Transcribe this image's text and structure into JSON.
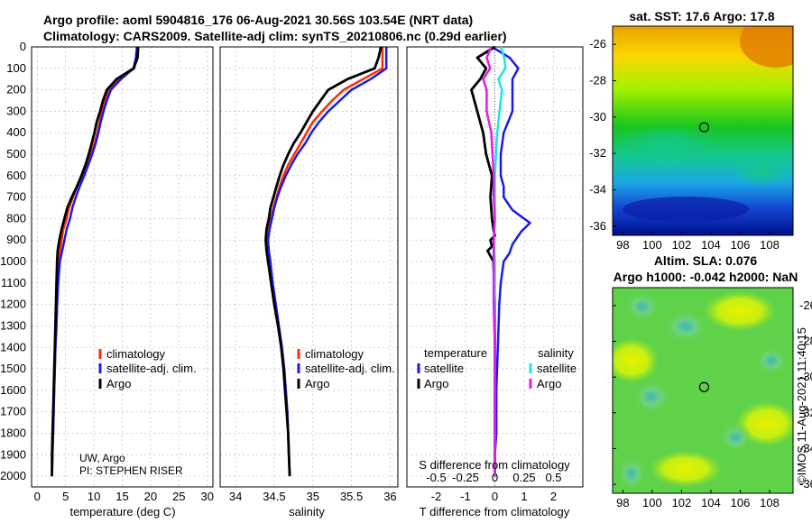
{
  "titles": {
    "line1": "Argo profile: aoml 5904816_176 06-Aug-2021 30.56S 103.54E (NRT data)",
    "line2": "Climatology: CARS2009. Satellite-adj clim: synTS_20210806.nc (0.29d earlier)"
  },
  "colors": {
    "climatology": "#ff2a00",
    "satellite": "#1a1ae6",
    "argo": "#000000",
    "t_satellite": "#1a1ae6",
    "s_satellite": "#19e6e6",
    "s_argo": "#e619e6"
  },
  "depth_axis": {
    "ticks": [
      "0",
      "100",
      "200",
      "300",
      "400",
      "500",
      "600",
      "700",
      "800",
      "900",
      "1000",
      "1100",
      "1200",
      "1300",
      "1400",
      "1500",
      "1600",
      "1700",
      "1800",
      "1900",
      "2000"
    ]
  },
  "temperature_panel": {
    "xlabel": "temperature (deg C)",
    "xticks": [
      "0",
      "5",
      "10",
      "15",
      "20",
      "25",
      "30"
    ],
    "legend": [
      "climatology",
      "satellite-adj. clim.",
      "Argo"
    ],
    "note_line1": "UW, Argo",
    "note_line2": "PI: STEPHEN RISER"
  },
  "salinity_panel": {
    "xlabel": "salinity",
    "xticks": [
      "34",
      "34.5",
      "35",
      "35.5",
      "36"
    ],
    "legend": [
      "climatology",
      "satellite-adj. clim.",
      "Argo"
    ]
  },
  "difference_panel": {
    "xlabel": "T difference from climatology",
    "top_label": "S difference from climatology",
    "xticks": [
      "-2",
      "-1",
      "0",
      "1",
      "2"
    ],
    "s_ticks": [
      "-0.5",
      "-0.25",
      "0",
      "0.25",
      "0.5"
    ],
    "legend_t_title": "temperature",
    "legend_s_title": "salinity",
    "legend_t": [
      "satellite",
      "Argo"
    ],
    "legend_s": [
      "satellite",
      "Argo"
    ]
  },
  "sst_map": {
    "title": "sat. SST: 17.6 Argo: 17.8",
    "yticks": [
      "-26",
      "-28",
      "-30",
      "-32",
      "-34",
      "-36"
    ],
    "xticks": [
      "98",
      "100",
      "102",
      "104",
      "106",
      "108"
    ],
    "marker": {
      "lon": 103.54,
      "lat": -30.56
    }
  },
  "sla_map": {
    "title_line1": "Altim. SLA: 0.076",
    "title_line2": "Argo h1000: -0.042 h2000: NaN",
    "yticks": [
      "-26",
      "-28",
      "-30",
      "-32",
      "-34",
      "-36"
    ],
    "xticks": [
      "98",
      "100",
      "102",
      "104",
      "106",
      "108"
    ],
    "marker": {
      "lon": 103.54,
      "lat": -30.56
    }
  },
  "watermark": "©IMOS 11-Aug-2021 11:40:15",
  "chart_data": [
    {
      "type": "line",
      "title": "",
      "xlabel": "temperature (deg C)",
      "ylabel": "",
      "xlim": [
        -1,
        31
      ],
      "ylim": [
        2050,
        0
      ],
      "grid": true,
      "legend": "center",
      "series": [
        {
          "name": "climatology",
          "x": [
            17.7,
            17.5,
            17.1,
            14.5,
            12.7,
            12.0,
            11.5,
            11.0,
            10.6,
            10.1,
            9.4,
            8.7,
            7.9,
            7.0,
            6.3,
            5.6,
            5.2,
            4.6,
            4.3,
            4.0,
            3.8,
            3.6,
            3.5,
            3.4,
            3.2,
            3.1,
            3.0,
            2.9,
            2.8,
            2.7,
            2.6
          ],
          "depth": [
            0,
            50,
            100,
            150,
            200,
            250,
            300,
            350,
            400,
            450,
            500,
            550,
            600,
            650,
            700,
            750,
            800,
            850,
            900,
            950,
            1000,
            1100,
            1200,
            1300,
            1400,
            1500,
            1600,
            1700,
            1800,
            1900,
            2000
          ]
        },
        {
          "name": "satellite-adj. clim.",
          "x": [
            17.6,
            17.4,
            17.0,
            14.8,
            13.0,
            12.3,
            11.7,
            11.2,
            10.8,
            10.3,
            9.7,
            9.0,
            8.3,
            7.5,
            6.8,
            6.2,
            5.8,
            5.2,
            4.8,
            4.4,
            4.0,
            3.7,
            3.5,
            3.4,
            3.2,
            3.1,
            3.0,
            2.9,
            2.8,
            2.7,
            2.6
          ],
          "depth": [
            0,
            50,
            100,
            150,
            200,
            250,
            300,
            350,
            400,
            450,
            500,
            550,
            600,
            650,
            700,
            750,
            800,
            850,
            900,
            950,
            1000,
            1100,
            1200,
            1300,
            1400,
            1500,
            1600,
            1700,
            1800,
            1900,
            2000
          ]
        },
        {
          "name": "Argo",
          "x": [
            17.8,
            17.7,
            17.0,
            14.0,
            12.3,
            11.6,
            11.1,
            10.5,
            10.1,
            9.6,
            9.1,
            8.5,
            7.8,
            7.0,
            6.1,
            5.3,
            4.8,
            4.3,
            3.9,
            3.6,
            3.5,
            3.4,
            3.3,
            3.2,
            3.1,
            3.0,
            2.9,
            2.8,
            2.7,
            2.6,
            2.6
          ],
          "depth": [
            0,
            50,
            100,
            150,
            200,
            250,
            300,
            350,
            400,
            450,
            500,
            550,
            600,
            650,
            700,
            750,
            800,
            850,
            900,
            950,
            1000,
            1100,
            1200,
            1300,
            1400,
            1500,
            1600,
            1700,
            1800,
            1900,
            2000
          ]
        }
      ]
    },
    {
      "type": "line",
      "title": "",
      "xlabel": "salinity",
      "ylabel": "",
      "xlim": [
        33.8,
        36.1
      ],
      "ylim": [
        2050,
        0
      ],
      "grid": true,
      "legend": "center",
      "series": [
        {
          "name": "climatology",
          "x": [
            35.9,
            35.9,
            35.9,
            35.65,
            35.4,
            35.25,
            35.12,
            35.0,
            34.92,
            34.84,
            34.76,
            34.68,
            34.62,
            34.57,
            34.53,
            34.49,
            34.46,
            34.43,
            34.41,
            34.42,
            34.44,
            34.48,
            34.52,
            34.56,
            34.6,
            34.63,
            34.65,
            34.67,
            34.68,
            34.69,
            34.7
          ],
          "depth": [
            0,
            50,
            100,
            150,
            200,
            250,
            300,
            350,
            400,
            450,
            500,
            550,
            600,
            650,
            700,
            750,
            800,
            850,
            900,
            950,
            1000,
            1100,
            1200,
            1300,
            1400,
            1500,
            1600,
            1700,
            1800,
            1900,
            2000
          ]
        },
        {
          "name": "satellite-adj. clim.",
          "x": [
            35.95,
            35.95,
            35.95,
            35.75,
            35.5,
            35.35,
            35.2,
            35.08,
            34.98,
            34.9,
            34.8,
            34.72,
            34.65,
            34.59,
            34.54,
            34.5,
            34.47,
            34.44,
            34.42,
            34.43,
            34.45,
            34.48,
            34.52,
            34.56,
            34.6,
            34.63,
            34.65,
            34.67,
            34.68,
            34.69,
            34.7
          ],
          "depth": [
            0,
            50,
            100,
            150,
            200,
            250,
            300,
            350,
            400,
            450,
            500,
            550,
            600,
            650,
            700,
            750,
            800,
            850,
            900,
            950,
            1000,
            1100,
            1200,
            1300,
            1400,
            1500,
            1600,
            1700,
            1800,
            1900,
            2000
          ]
        },
        {
          "name": "Argo",
          "x": [
            35.88,
            35.85,
            35.8,
            35.45,
            35.2,
            35.1,
            35.0,
            34.92,
            34.84,
            34.75,
            34.68,
            34.62,
            34.57,
            34.53,
            34.49,
            34.45,
            34.43,
            34.4,
            34.39,
            34.4,
            34.42,
            34.46,
            34.5,
            34.55,
            34.59,
            34.62,
            34.64,
            34.66,
            34.68,
            34.69,
            34.7
          ],
          "depth": [
            0,
            50,
            100,
            150,
            200,
            250,
            300,
            350,
            400,
            450,
            500,
            550,
            600,
            650,
            700,
            750,
            800,
            850,
            900,
            950,
            1000,
            1100,
            1200,
            1300,
            1400,
            1500,
            1600,
            1700,
            1800,
            1900,
            2000
          ]
        }
      ]
    },
    {
      "type": "line",
      "title": "",
      "xlabel": "T difference from climatology",
      "x2label": "S difference from climatology",
      "ylabel": "",
      "xlim": [
        -3,
        3
      ],
      "x2lim": [
        -0.75,
        0.75
      ],
      "ylim": [
        2050,
        0
      ],
      "grid": true,
      "series": [
        {
          "name": "temperature satellite",
          "axis": "T",
          "x": [
            -0.1,
            0.5,
            0.8,
            0.6,
            0.6,
            0.6,
            0.3,
            0.2,
            0.2,
            0.2,
            0.3,
            0.3,
            0.4,
            0.5,
            0.6,
            0.8,
            1.2,
            0.9,
            0.8,
            0.6,
            0.5,
            0.3,
            0.2,
            0.15,
            0.1,
            0.05,
            0.05,
            0.0,
            0.0
          ],
          "depth": [
            0,
            50,
            100,
            150,
            200,
            300,
            400,
            500,
            550,
            600,
            650,
            700,
            720,
            740,
            760,
            780,
            820,
            860,
            880,
            920,
            960,
            1000,
            1100,
            1200,
            1400,
            1600,
            1800,
            1900,
            2000
          ]
        },
        {
          "name": "temperature Argo",
          "axis": "T",
          "x": [
            0.0,
            -0.6,
            -0.3,
            -0.5,
            -0.8,
            -0.6,
            -0.4,
            -0.3,
            -0.1,
            -0.15,
            -0.1,
            -0.05,
            0.0,
            -0.15,
            -0.1,
            -0.25,
            -0.05,
            0.0,
            0.0,
            0.0,
            0.0
          ],
          "depth": [
            0,
            50,
            100,
            150,
            200,
            300,
            400,
            500,
            600,
            700,
            800,
            850,
            880,
            900,
            930,
            950,
            1000,
            1200,
            1400,
            1700,
            2000
          ]
        },
        {
          "name": "salinity satellite",
          "axis": "S",
          "x": [
            0.05,
            0.08,
            0.09,
            0.03,
            0.06,
            0.04,
            0.02,
            0.01,
            0.0,
            0.0,
            0.0,
            -0.01,
            0.0,
            0.0,
            0.0,
            0.0,
            0.0,
            0.0,
            0.0
          ],
          "depth": [
            0,
            50,
            100,
            150,
            200,
            300,
            400,
            500,
            600,
            700,
            800,
            900,
            1000,
            1200,
            1400,
            1600,
            1800,
            1950,
            2000
          ]
        },
        {
          "name": "salinity Argo",
          "axis": "S",
          "x": [
            -0.03,
            -0.07,
            -0.04,
            -0.1,
            -0.07,
            -0.07,
            -0.03,
            -0.02,
            -0.01,
            -0.01,
            0.0,
            -0.01,
            -0.01,
            -0.01,
            0.0,
            0.0,
            0.0,
            0.0,
            0.0
          ],
          "depth": [
            0,
            50,
            100,
            150,
            200,
            300,
            400,
            500,
            600,
            700,
            800,
            900,
            1000,
            1200,
            1400,
            1600,
            1800,
            1950,
            2000
          ]
        }
      ]
    }
  ]
}
